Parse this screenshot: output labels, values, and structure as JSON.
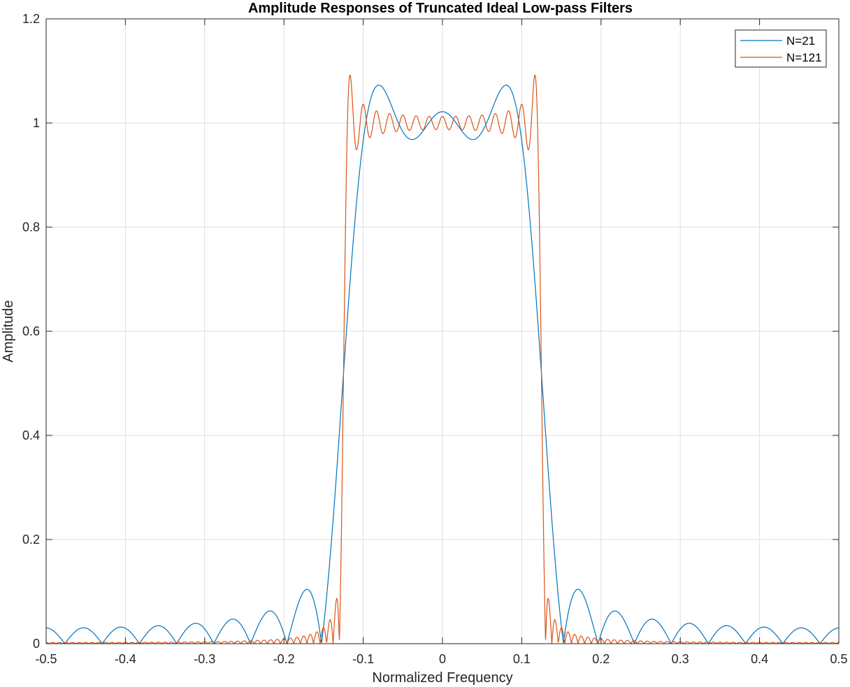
{
  "chart_data": {
    "type": "line",
    "title": "Amplitude Responses of Truncated Ideal Low-pass Filters",
    "xlabel": "Normalized Frequency",
    "ylabel": "Amplitude",
    "xlim": [
      -0.5,
      0.5
    ],
    "ylim": [
      0,
      1.2
    ],
    "xticks": [
      -0.5,
      -0.4,
      -0.3,
      -0.2,
      -0.1,
      0,
      0.1,
      0.2,
      0.3,
      0.4,
      0.5
    ],
    "xtick_labels": [
      "-0.5",
      "-0.4",
      "-0.3",
      "-0.2",
      "-0.1",
      "0",
      "0.1",
      "0.2",
      "0.3",
      "0.4",
      "0.5"
    ],
    "yticks": [
      0,
      0.2,
      0.4,
      0.6,
      0.8,
      1,
      1.2
    ],
    "ytick_labels": [
      "0",
      "0.2",
      "0.4",
      "0.6",
      "0.8",
      "1",
      "1.2"
    ],
    "grid": true,
    "legend_position": "top-right",
    "cutoff": 0.125,
    "series": [
      {
        "name": "N=21",
        "taps": 21,
        "color": "#0072BD"
      },
      {
        "name": "N=121",
        "taps": 121,
        "color": "#D95319"
      }
    ]
  }
}
